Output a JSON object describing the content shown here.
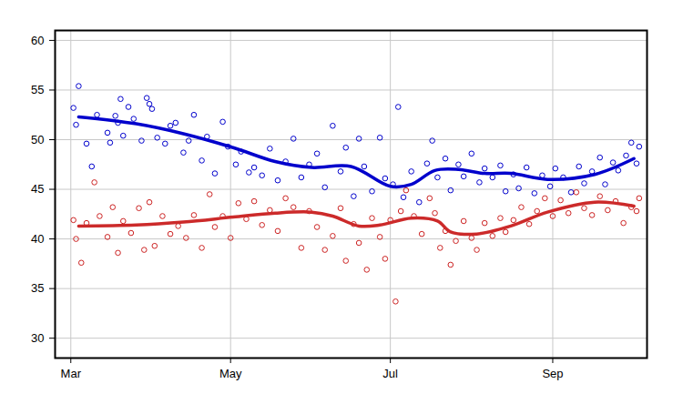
{
  "chart_data": {
    "type": "scatter",
    "xlim": [
      -6,
      220
    ],
    "xticks": [
      {
        "value": 0,
        "label": "Mar"
      },
      {
        "value": 61,
        "label": "May"
      },
      {
        "value": 122,
        "label": "Jul"
      },
      {
        "value": 184,
        "label": "Sep"
      }
    ],
    "ylim": [
      28,
      61
    ],
    "yticks": [
      30,
      35,
      40,
      45,
      50,
      55,
      60
    ],
    "grid": true,
    "series": [
      {
        "type": "scatter",
        "marker": "circle",
        "color": "#0000cc",
        "x": [
          1,
          2,
          3,
          6,
          8,
          10,
          14,
          15,
          17,
          18,
          19,
          20,
          22,
          24,
          27,
          29,
          30,
          31,
          33,
          36,
          38,
          40,
          43,
          45,
          47,
          50,
          52,
          55,
          58,
          60,
          63,
          65,
          68,
          70,
          73,
          76,
          79,
          82,
          85,
          88,
          91,
          94,
          97,
          100,
          103,
          105,
          108,
          110,
          112,
          115,
          118,
          120,
          123,
          125,
          127,
          130,
          133,
          136,
          138,
          140,
          143,
          145,
          148,
          150,
          153,
          156,
          158,
          161,
          164,
          166,
          169,
          171,
          174,
          177,
          180,
          183,
          185,
          188,
          191,
          194,
          196,
          199,
          202,
          204,
          207,
          209,
          212,
          214,
          216,
          217
        ],
        "values": [
          53.2,
          51.5,
          55.4,
          49.6,
          47.3,
          52.5,
          50.7,
          49.7,
          52.4,
          51.7,
          54.1,
          50.4,
          53.3,
          52.1,
          49.9,
          54.2,
          53.6,
          53.1,
          50.2,
          49.6,
          51.4,
          51.7,
          48.7,
          49.9,
          52.5,
          47.9,
          50.3,
          46.6,
          51.8,
          49.3,
          47.5,
          48.8,
          46.7,
          47.2,
          46.4,
          49.1,
          45.9,
          47.8,
          50.1,
          46.2,
          47.5,
          48.6,
          45.2,
          51.4,
          46.8,
          49.2,
          44.3,
          50.1,
          47.3,
          44.8,
          50.2,
          46.1,
          45.5,
          53.3,
          44.2,
          46.8,
          43.7,
          47.6,
          49.9,
          46.2,
          48.1,
          44.9,
          47.5,
          46.3,
          48.6,
          45.7,
          47.1,
          46.2,
          47.4,
          44.8,
          46.5,
          45.1,
          47.2,
          44.6,
          46.4,
          45.3,
          47.1,
          46.2,
          44.7,
          47.3,
          45.6,
          46.8,
          48.2,
          45.5,
          47.7,
          46.9,
          48.4,
          49.7,
          47.6,
          49.3
        ]
      },
      {
        "type": "scatter",
        "marker": "circle",
        "color": "#cc2222",
        "x": [
          1,
          2,
          4,
          6,
          9,
          11,
          14,
          16,
          18,
          20,
          23,
          26,
          28,
          30,
          32,
          35,
          38,
          41,
          44,
          47,
          50,
          53,
          55,
          58,
          61,
          64,
          67,
          70,
          73,
          76,
          79,
          82,
          85,
          88,
          91,
          94,
          97,
          100,
          103,
          105,
          108,
          110,
          113,
          115,
          118,
          120,
          122,
          124,
          126,
          128,
          131,
          134,
          137,
          139,
          141,
          143,
          145,
          147,
          150,
          153,
          155,
          158,
          161,
          164,
          166,
          169,
          172,
          175,
          178,
          181,
          184,
          187,
          190,
          193,
          196,
          199,
          202,
          205,
          208,
          211,
          214,
          216,
          217
        ],
        "values": [
          41.9,
          40.0,
          37.6,
          41.6,
          45.7,
          42.3,
          40.2,
          43.2,
          38.6,
          41.8,
          40.6,
          43.1,
          38.9,
          43.7,
          39.3,
          42.3,
          40.5,
          41.3,
          40.1,
          42.4,
          39.1,
          44.5,
          41.2,
          42.3,
          40.1,
          43.6,
          42.0,
          43.8,
          41.4,
          42.9,
          40.8,
          44.1,
          43.2,
          39.1,
          42.8,
          41.2,
          38.9,
          40.3,
          43.1,
          37.8,
          41.5,
          39.6,
          36.9,
          42.1,
          40.2,
          38.0,
          41.9,
          33.7,
          42.8,
          44.9,
          42.3,
          40.5,
          44.1,
          42.6,
          39.1,
          40.8,
          37.4,
          39.8,
          41.8,
          40.1,
          38.9,
          41.6,
          40.3,
          42.1,
          40.7,
          41.9,
          43.2,
          41.5,
          42.8,
          44.1,
          42.3,
          43.9,
          42.6,
          44.7,
          43.1,
          42.4,
          44.3,
          42.9,
          43.8,
          41.6,
          43.2,
          42.8,
          44.1
        ]
      },
      {
        "type": "line",
        "line_style": "solid",
        "color": "#0000cc",
        "x": [
          3,
          25,
          43,
          62,
          78,
          92,
          107,
          122,
          130,
          139,
          148,
          158,
          168,
          182,
          200,
          215
        ],
        "values": [
          52.3,
          51.6,
          50.6,
          49.2,
          47.8,
          47.2,
          47.3,
          45.3,
          45.5,
          46.9,
          47.0,
          46.6,
          46.6,
          46.0,
          46.5,
          48.1
        ]
      },
      {
        "type": "line",
        "line_style": "solid",
        "color": "#cc2a2a",
        "x": [
          3,
          25,
          43,
          62,
          78,
          92,
          100,
          110,
          118,
          130,
          140,
          145,
          155,
          168,
          182,
          200,
          215
        ],
        "values": [
          41.3,
          41.4,
          41.7,
          42.2,
          42.6,
          42.7,
          42.3,
          41.3,
          41.4,
          42.1,
          41.8,
          40.7,
          40.5,
          41.3,
          42.7,
          43.7,
          43.3
        ]
      }
    ]
  }
}
